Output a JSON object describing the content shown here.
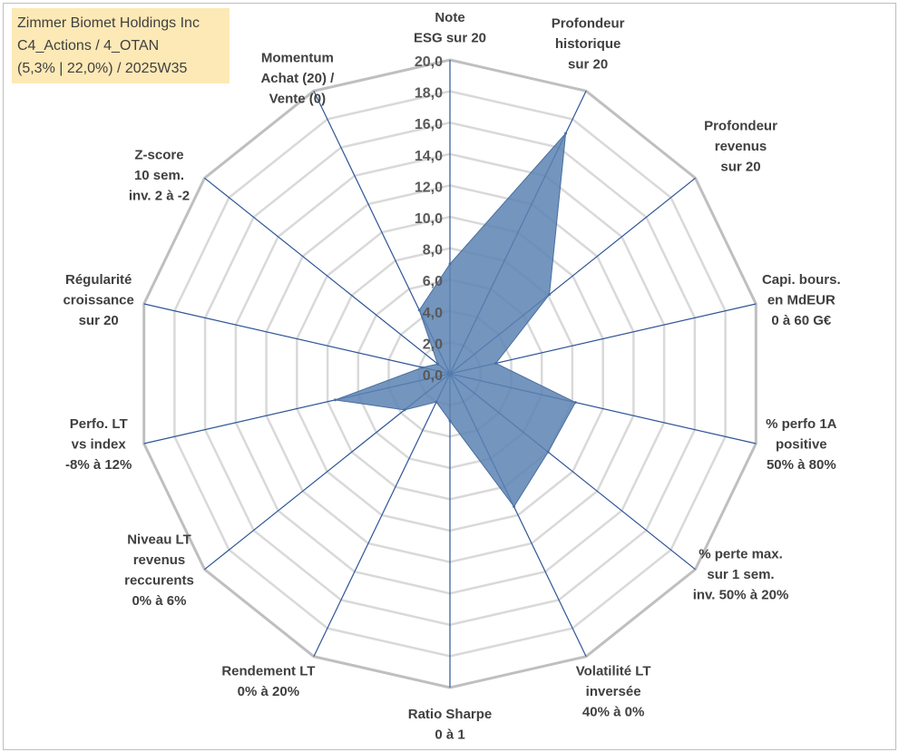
{
  "title_box": {
    "line1": "Zimmer Biomet Holdings Inc",
    "line2": "C4_Actions / 4_OTAN",
    "line3": "(5,3% | 22,0%) / 2025W35"
  },
  "chart_data": {
    "type": "radar",
    "rlim": [
      0,
      20
    ],
    "tick_labels": [
      "0,0",
      "2,0",
      "4,0",
      "6,0",
      "8,0",
      "10,0",
      "12,0",
      "14,0",
      "16,0",
      "18,0",
      "20,0"
    ],
    "axes": [
      {
        "label_lines": [
          "Note",
          "ESG sur 20"
        ],
        "value": 7.0
      },
      {
        "label_lines": [
          "Profondeur",
          "historique",
          "sur 20"
        ],
        "value": 17.0
      },
      {
        "label_lines": [
          "Profondeur",
          "revenus",
          "sur 20"
        ],
        "value": 8.1
      },
      {
        "label_lines": [
          "Capi. bours.",
          "en MdEUR",
          "0 à 60 G€"
        ],
        "value": 3.0
      },
      {
        "label_lines": [
          "% perfo 1A",
          "positive",
          "50% à 80%"
        ],
        "value": 8.2
      },
      {
        "label_lines": [
          "% perte max.",
          "sur 1 sem.",
          "inv. 50% à 20%"
        ],
        "value": 8.0
      },
      {
        "label_lines": [
          "Volatilité LT",
          "inversée",
          "40% à 0%"
        ],
        "value": 9.4
      },
      {
        "label_lines": [
          "Ratio Sharpe",
          "0 à 1"
        ],
        "value": 3.0
      },
      {
        "label_lines": [
          "Rendement LT",
          "0% à 20%"
        ],
        "value": 2.0
      },
      {
        "label_lines": [
          "Niveau LT",
          "revenus",
          "reccurents",
          "0% à 6%"
        ],
        "value": 3.7
      },
      {
        "label_lines": [
          "Perfo. LT",
          "vs index",
          "-8% à 12%"
        ],
        "value": 7.5
      },
      {
        "label_lines": [
          "Régularité",
          "croissance",
          "sur 20"
        ],
        "value": 1.8
      },
      {
        "label_lines": [
          "Z-score",
          "10 sem.",
          "inv. 2 à -2"
        ],
        "value": 1.0
      },
      {
        "label_lines": [
          "Momentum",
          "Achat (20) /",
          "Vente (0)"
        ],
        "value": 4.5
      }
    ],
    "series_color": "#5b82b3",
    "axis_line_color": "#2f5597",
    "grid_color": "#d9d9d9",
    "outer_ring_color": "#bfbfbf",
    "grid": true
  }
}
